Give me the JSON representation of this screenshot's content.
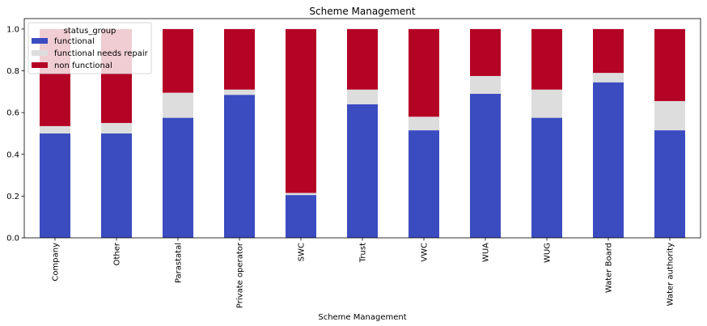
{
  "chart_data": {
    "type": "bar",
    "stacked": true,
    "title": "Scheme Management",
    "xlabel": "Scheme Management",
    "ylabel": "",
    "ylim": [
      0,
      1.0
    ],
    "yticks": [
      "0.0",
      "0.2",
      "0.4",
      "0.6",
      "0.8",
      "1.0"
    ],
    "categories": [
      "Company",
      "Other",
      "Parastatal",
      "Private operator",
      "SWC",
      "Trust",
      "VWC",
      "WUA",
      "WUG",
      "Water Board",
      "Water authority"
    ],
    "series": [
      {
        "name": "functional",
        "color": "#3b4cc0",
        "values": [
          0.5,
          0.5,
          0.575,
          0.685,
          0.205,
          0.64,
          0.515,
          0.69,
          0.575,
          0.745,
          0.515
        ]
      },
      {
        "name": "functional needs repair",
        "color": "#dddddd",
        "values": [
          0.035,
          0.05,
          0.12,
          0.025,
          0.01,
          0.07,
          0.065,
          0.085,
          0.135,
          0.045,
          0.14
        ]
      },
      {
        "name": "non functional",
        "color": "#b40426",
        "values": [
          0.465,
          0.45,
          0.305,
          0.29,
          0.785,
          0.29,
          0.42,
          0.225,
          0.29,
          0.21,
          0.345
        ]
      }
    ],
    "legend": {
      "title": "status_group",
      "placement": "top-left"
    },
    "grid": false
  }
}
